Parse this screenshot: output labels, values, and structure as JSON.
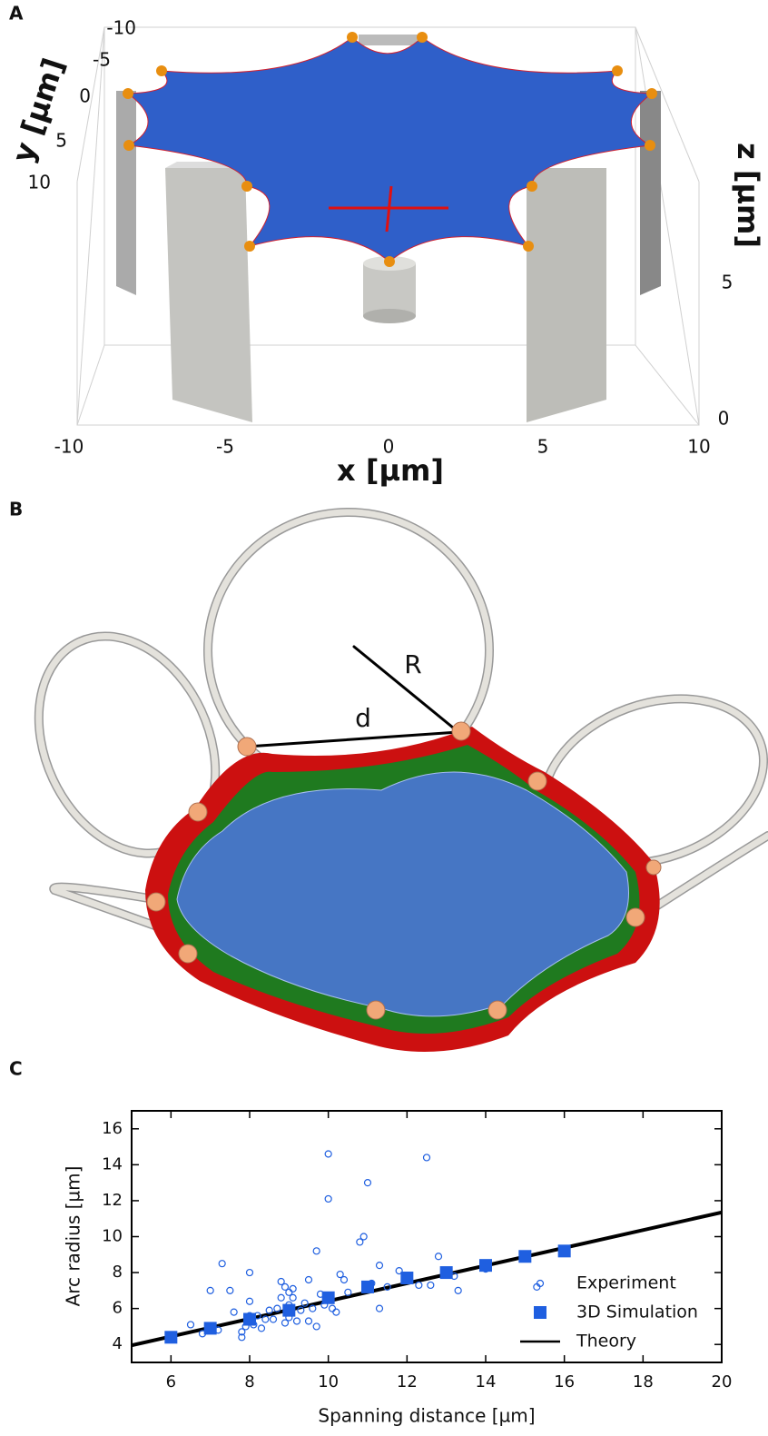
{
  "panel_labels": [
    "A",
    "B",
    "C"
  ],
  "panel_a": {
    "x_ticks": [
      -10,
      -5,
      0,
      5,
      10
    ],
    "x_label": "x [µm]",
    "y_ticks": [
      -10,
      -5,
      0,
      5,
      10
    ],
    "y_label": "y [µm]",
    "z_ticks": [
      0,
      5
    ],
    "z_label": "z [µm]"
  },
  "panel_b": {
    "labels": [
      "R",
      "d"
    ]
  },
  "chart_data": {
    "type": "scatter",
    "x_label": "Spanning distance [µm]",
    "y_label": "Arc radius [µm]",
    "xlim": [
      5,
      20
    ],
    "ylim": [
      3,
      17
    ],
    "xticks": [
      6,
      8,
      10,
      12,
      14,
      16,
      18,
      20
    ],
    "yticks": [
      4,
      6,
      8,
      10,
      12,
      14,
      16
    ],
    "grid": false,
    "legend": "lower right",
    "series": [
      {
        "name": "Experiment",
        "color": "#1f5fe0",
        "marker": "open-circle",
        "x": [
          6.5,
          6.8,
          7,
          7.2,
          7.3,
          7.5,
          7.6,
          7.8,
          7.8,
          7.9,
          8,
          8,
          8,
          8.1,
          8.2,
          8.3,
          8.4,
          8.5,
          8.6,
          8.7,
          8.8,
          8.8,
          8.9,
          8.9,
          9,
          9,
          9,
          9.1,
          9.1,
          9.2,
          9.3,
          9.4,
          9.5,
          9.5,
          9.6,
          9.7,
          9.7,
          9.8,
          9.9,
          10,
          10,
          10,
          10.1,
          10.2,
          10.3,
          10.4,
          10.5,
          10.8,
          10.9,
          11,
          11,
          11.1,
          11.3,
          11.3,
          11.5,
          11.8,
          12,
          12.3,
          12.5,
          12.6,
          12.8,
          13,
          13.2,
          13.3,
          14,
          15.3
        ],
        "values": [
          5.1,
          4.6,
          7.0,
          4.8,
          8.5,
          7.0,
          5.8,
          4.7,
          4.4,
          5.0,
          8.0,
          6.4,
          5.6,
          5.1,
          5.6,
          4.9,
          5.4,
          5.9,
          5.4,
          6.0,
          7.5,
          6.6,
          5.2,
          7.2,
          6.9,
          6.2,
          5.5,
          7.1,
          6.6,
          5.3,
          5.9,
          6.3,
          7.6,
          5.3,
          6.0,
          9.2,
          5.0,
          6.8,
          6.2,
          14.6,
          12.1,
          6.6,
          6.0,
          5.8,
          7.9,
          7.6,
          6.9,
          9.7,
          10.0,
          13.0,
          7.3,
          7.4,
          8.4,
          6.0,
          7.2,
          8.1,
          7.6,
          7.3,
          14.4,
          7.3,
          8.9,
          8.1,
          7.8,
          7.0,
          8.2,
          7.2
        ]
      },
      {
        "name": "3D Simulation",
        "color": "#1f5fe0",
        "marker": "square",
        "x": [
          6,
          7,
          8,
          9,
          10,
          11,
          12,
          13,
          14,
          15,
          16
        ],
        "values": [
          4.4,
          4.9,
          5.4,
          5.9,
          6.6,
          7.2,
          7.7,
          8.0,
          8.4,
          8.9,
          9.2
        ]
      },
      {
        "name": "Theory",
        "color": "#000000",
        "marker": "line",
        "x": [
          5,
          20
        ],
        "values": [
          3.95,
          11.35
        ]
      }
    ]
  }
}
